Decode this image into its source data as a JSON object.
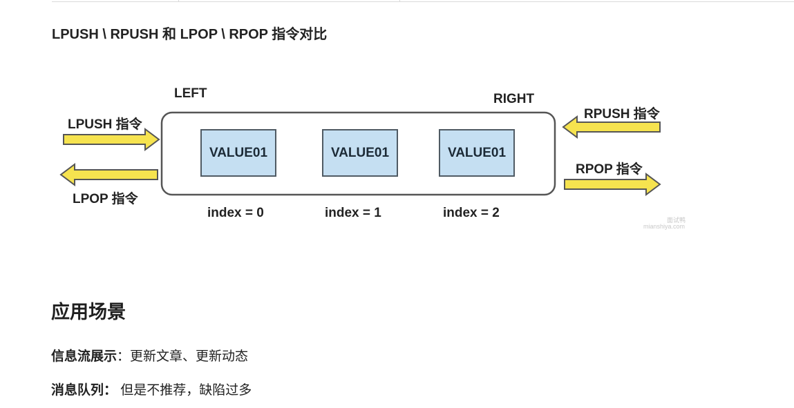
{
  "heading": "LPUSH \\ RPUSH 和 LPOP \\ RPOP 指令对比",
  "diagram": {
    "left_label": "LEFT",
    "right_label": "RIGHT",
    "lpush_label": "LPUSH 指令",
    "lpop_label": "LPOP 指令",
    "rpush_label": "RPUSH 指令",
    "rpop_label": "RPOP 指令",
    "values": [
      "VALUE01",
      "VALUE01",
      "VALUE01"
    ],
    "indices": [
      "index = 0",
      "index = 1",
      "index = 2"
    ],
    "watermark": {
      "name": "面试鸭",
      "url": "mianshiya.com"
    },
    "colors": {
      "arrow": "#f6e34f",
      "value_box": "#c5dff2",
      "outline": "#555555"
    }
  },
  "section_title": "应用场景",
  "items": [
    {
      "label": "信息流展示",
      "sep": "：",
      "text": "更新文章、更新动态"
    },
    {
      "label": "消息队列",
      "sep": "：",
      "text": " 但是不推荐，缺陷过多"
    }
  ]
}
